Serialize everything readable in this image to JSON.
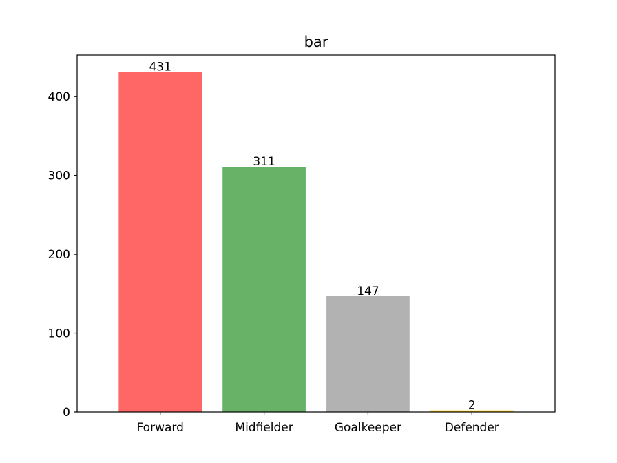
{
  "chart_data": {
    "type": "bar",
    "title": "bar",
    "xlabel": "",
    "ylabel": "",
    "categories": [
      "Forward",
      "Midfielder",
      "Goalkeeper",
      "Defender"
    ],
    "values": [
      431,
      311,
      147,
      2
    ],
    "data_labels": [
      "431",
      "311",
      "147",
      "2"
    ],
    "colors": [
      "#ff6666",
      "#67b267",
      "#b2b2b2",
      "#ffcc00"
    ],
    "ylim": [
      0,
      452.6
    ],
    "yticks": [
      0,
      100,
      200,
      300,
      400
    ],
    "ytick_labels": [
      "0",
      "100",
      "200",
      "300",
      "400"
    ],
    "grid": false,
    "legend": "none"
  }
}
